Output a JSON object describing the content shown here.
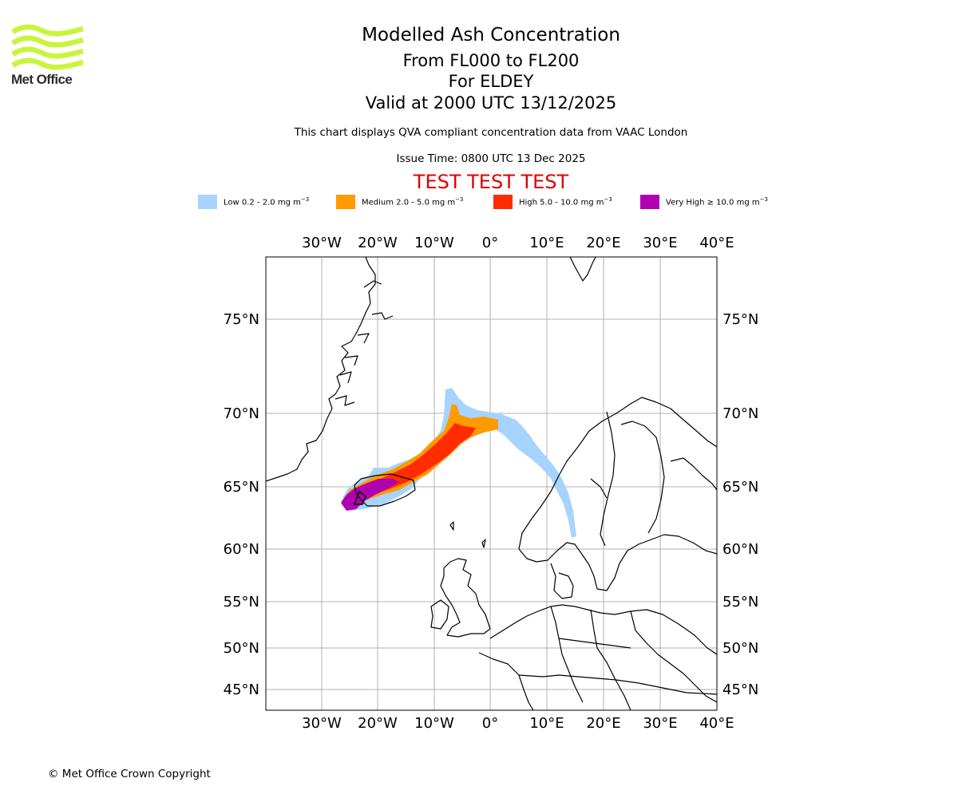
{
  "header": {
    "logo_text": "Met Office",
    "title": "Modelled Ash Concentration",
    "level_range": "From FL000 to FL200",
    "volcano": "For ELDEY",
    "valid_time": "Valid at 2000 UTC 13/12/2025",
    "note": "This chart displays QVA compliant concentration data from VAAC London",
    "issue_time": "Issue Time: 0800 UTC 13 Dec 2025",
    "test_banner": "TEST TEST TEST"
  },
  "legend": [
    {
      "label": "Low 0.2 - 2.0 mg m",
      "unit_sup": "−3",
      "color": "#a6d4ff"
    },
    {
      "label": "Medium 2.0 - 5.0 mg m",
      "unit_sup": "−3",
      "color": "#ff9a00"
    },
    {
      "label": "High 5.0 - 10.0 mg m",
      "unit_sup": "−3",
      "color": "#ff2c00"
    },
    {
      "label": "Very High  ≥  10.0 mg m",
      "unit_sup": "−3",
      "color": "#b000b0"
    }
  ],
  "map": {
    "lon_ticks": [
      "30°W",
      "20°W",
      "10°W",
      "0°",
      "10°E",
      "20°E",
      "30°E",
      "40°E"
    ],
    "lat_ticks": [
      "75°N",
      "70°N",
      "65°N",
      "60°N",
      "55°N",
      "50°N",
      "45°N"
    ],
    "colors": {
      "grid": "#b0b0b0",
      "coast": "#000000"
    }
  },
  "footer": {
    "copyright": "© Met Office Crown Copyright"
  }
}
